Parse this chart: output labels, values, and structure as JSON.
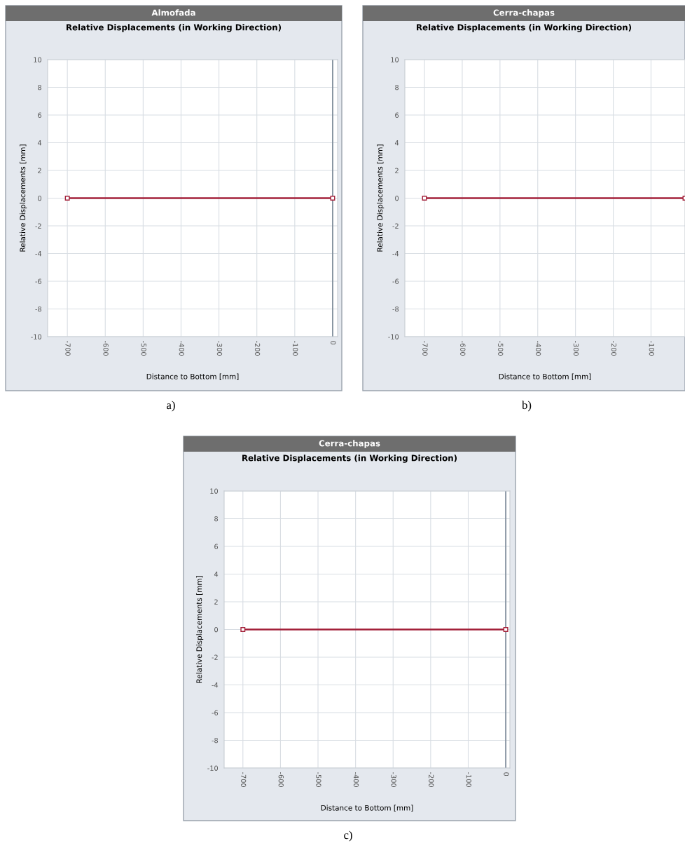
{
  "chart_data": [
    {
      "type": "line",
      "title": "Almofada",
      "subtitle": "Relative Displacements (in Working Direction)",
      "xlabel": "Distance to Bottom [mm]",
      "ylabel": "Relative Displacements [mm]",
      "annotations": [
        "a)"
      ],
      "xlim": [
        -752,
        13
      ],
      "ylim": [
        -10,
        10
      ],
      "xticks": [
        -700,
        -600,
        -500,
        -400,
        -300,
        -200,
        -100,
        0
      ],
      "yticks": [
        -10,
        -8,
        -6,
        -4,
        -2,
        0,
        2,
        4,
        6,
        8,
        10
      ],
      "grid": true,
      "marker": "square",
      "line_style": "solid",
      "series": [
        {
          "color": "#a3213a",
          "x": [
            -700,
            0
          ],
          "values": [
            0,
            0
          ]
        }
      ],
      "ref_lines": [
        {
          "axis": "x",
          "value": 0,
          "color": "#7a8896"
        }
      ]
    },
    {
      "type": "line",
      "title": "Cerra-chapas",
      "subtitle": "Relative Displacements (in Working Direction)",
      "xlabel": "Distance to Bottom [mm]",
      "ylabel": "Relative Displacements [mm]",
      "annotations": [
        "b)"
      ],
      "xlim": [
        -752,
        -10
      ],
      "ylim": [
        -10,
        10
      ],
      "xticks": [
        -700,
        -600,
        -500,
        -400,
        -300,
        -200,
        -100
      ],
      "yticks": [
        -10,
        -8,
        -6,
        -4,
        -2,
        0,
        2,
        4,
        6,
        8,
        10
      ],
      "grid": true,
      "marker": "square",
      "line_style": "solid",
      "series": [
        {
          "color": "#a3213a",
          "x": [
            -700,
            -10
          ],
          "values": [
            0,
            0
          ]
        }
      ]
    },
    {
      "type": "line",
      "title": "Cerra-chapas",
      "subtitle": "Relative Displacements (in Working Direction)",
      "xlabel": "Distance to Bottom [mm]",
      "ylabel": "Relative Displacements [mm]",
      "annotations": [
        "c)"
      ],
      "xlim": [
        -750,
        11
      ],
      "ylim": [
        -10,
        10
      ],
      "xticks": [
        -700,
        -600,
        -500,
        -400,
        -300,
        -200,
        -100,
        0
      ],
      "yticks": [
        -10,
        -8,
        -6,
        -4,
        -2,
        0,
        2,
        4,
        6,
        8,
        10
      ],
      "grid": true,
      "marker": "square",
      "line_style": "solid",
      "series": [
        {
          "color": "#a3213a",
          "x": [
            -700,
            0
          ],
          "values": [
            0,
            0
          ]
        }
      ],
      "ref_lines": [
        {
          "axis": "x",
          "value": 0,
          "color": "#7a8896"
        }
      ]
    }
  ]
}
